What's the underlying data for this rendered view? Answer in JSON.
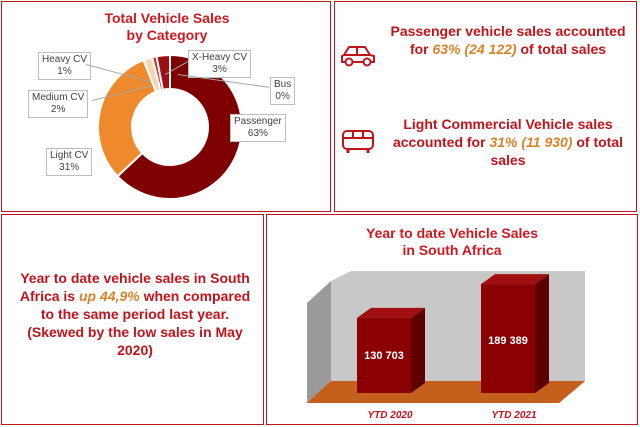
{
  "chart_data": [
    {
      "type": "pie",
      "title": "Total Vehicle Sales by Category",
      "title_lines": [
        "Total Vehicle Sales",
        "by Category"
      ],
      "slices": [
        {
          "label": "Passenger",
          "value": 63,
          "display": "63%",
          "color": "#7f0000"
        },
        {
          "label": "Light CV",
          "value": 31,
          "display": "31%",
          "color": "#ef8a2c"
        },
        {
          "label": "Medium CV",
          "value": 2,
          "display": "2%",
          "color": "#f5d6b0"
        },
        {
          "label": "Heavy CV",
          "value": 1,
          "display": "1%",
          "color": "#d62a2a"
        },
        {
          "label": "X-Heavy CV",
          "value": 3,
          "display": "3%",
          "color": "#9c0f14"
        },
        {
          "label": "Bus",
          "value": 0,
          "display": "0%",
          "color": "#5a0000"
        }
      ]
    },
    {
      "type": "bar",
      "title": "Year to date Vehicle Sales in South Africa",
      "title_lines": [
        "Year to date Vehicle Sales",
        "in South Africa"
      ],
      "categories": [
        "YTD 2020",
        "YTD 2021"
      ],
      "values": [
        130703,
        189389
      ],
      "value_labels": [
        "130 703",
        "189 389"
      ],
      "ylim": [
        0,
        200000
      ],
      "colors": {
        "bar_front": "#8b0000",
        "bar_side": "#5c0000",
        "bar_top": "#a01010",
        "floor": "#c4601c",
        "wall": "#c8c8c8",
        "left_wall": "#9a9a9a"
      }
    }
  ],
  "facts": [
    {
      "icon": "car-icon",
      "pre": "Passenger vehicle sales accounted for ",
      "highlight": "63% (24 122)",
      "post": " of total sales"
    },
    {
      "icon": "bus-icon",
      "pre": "Light Commercial Vehicle sales accounted for ",
      "highlight": "31% (11 930)",
      "post": " of total sales"
    }
  ],
  "ytd_comparison": {
    "pre": "Year to date vehicle sales in South Africa is ",
    "highlight": "up 44,9%",
    "post": " when compared to the same period last year.",
    "note": "(Skewed by the low sales in May 2020)"
  },
  "colors": {
    "accent": "#c0141b",
    "highlight": "#d9822b"
  }
}
